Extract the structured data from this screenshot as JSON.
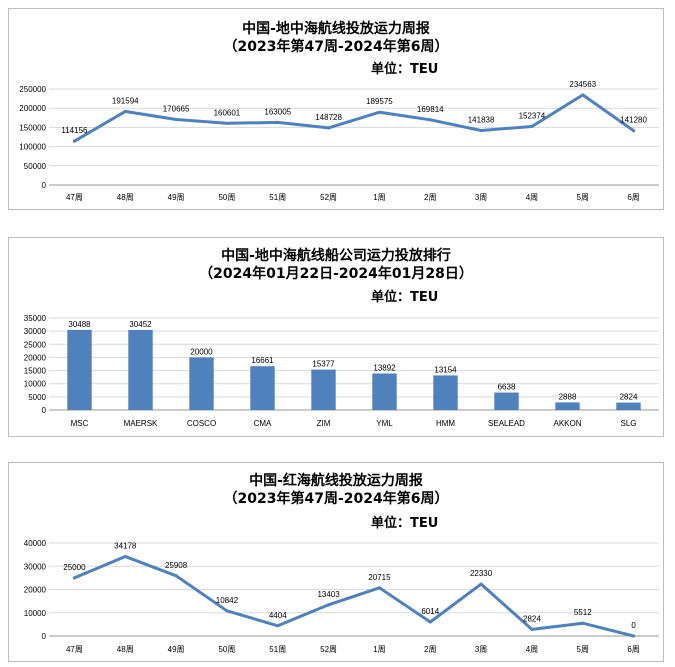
{
  "chart_data": [
    {
      "type": "line",
      "title": "中国-地中海航线投放运力周报",
      "subtitle": "（2023年第47周-2024年第6周）",
      "unit_label": "单位：TEU",
      "categories": [
        "47周",
        "48周",
        "49周",
        "50周",
        "51周",
        "52周",
        "1周",
        "2周",
        "3周",
        "4周",
        "5周",
        "6周"
      ],
      "values": [
        114156,
        191594,
        170665,
        160601,
        163005,
        148728,
        189575,
        169814,
        141838,
        152374,
        234563,
        141280
      ],
      "ylim": [
        0,
        250000
      ],
      "yticks": [
        0,
        50000,
        100000,
        150000,
        200000,
        250000
      ],
      "grid": true,
      "color": "#4f81bd"
    },
    {
      "type": "bar",
      "title": "中国-地中海航线船公司运力投放排行",
      "subtitle": "（2024年01月22日-2024年01月28日）",
      "unit_label": "单位：TEU",
      "categories": [
        "MSC",
        "MAERSK",
        "COSCO",
        "CMA",
        "ZIM",
        "YML",
        "HMM",
        "SEALEAD",
        "AKKON",
        "SLG"
      ],
      "values": [
        30488,
        30452,
        20000,
        16661,
        15377,
        13892,
        13154,
        6638,
        2888,
        2824
      ],
      "ylim": [
        0,
        35000
      ],
      "yticks": [
        0,
        5000,
        10000,
        15000,
        20000,
        25000,
        30000,
        35000
      ],
      "grid": true,
      "color": "#4f81bd"
    },
    {
      "type": "line",
      "title": "中国-红海航线投放运力周报",
      "subtitle": "（2023年第47周-2024年第6周）",
      "unit_label": "单位：TEU",
      "categories": [
        "47周",
        "48周",
        "49周",
        "50周",
        "51周",
        "52周",
        "1周",
        "2周",
        "3周",
        "4周",
        "5周",
        "6周"
      ],
      "values": [
        25000,
        34178,
        25908,
        10842,
        4404,
        13403,
        20715,
        6014,
        22330,
        2824,
        5512,
        0
      ],
      "ylim": [
        0,
        40000
      ],
      "yticks": [
        0,
        10000,
        20000,
        30000,
        40000
      ],
      "grid": true,
      "color": "#4f81bd"
    }
  ]
}
